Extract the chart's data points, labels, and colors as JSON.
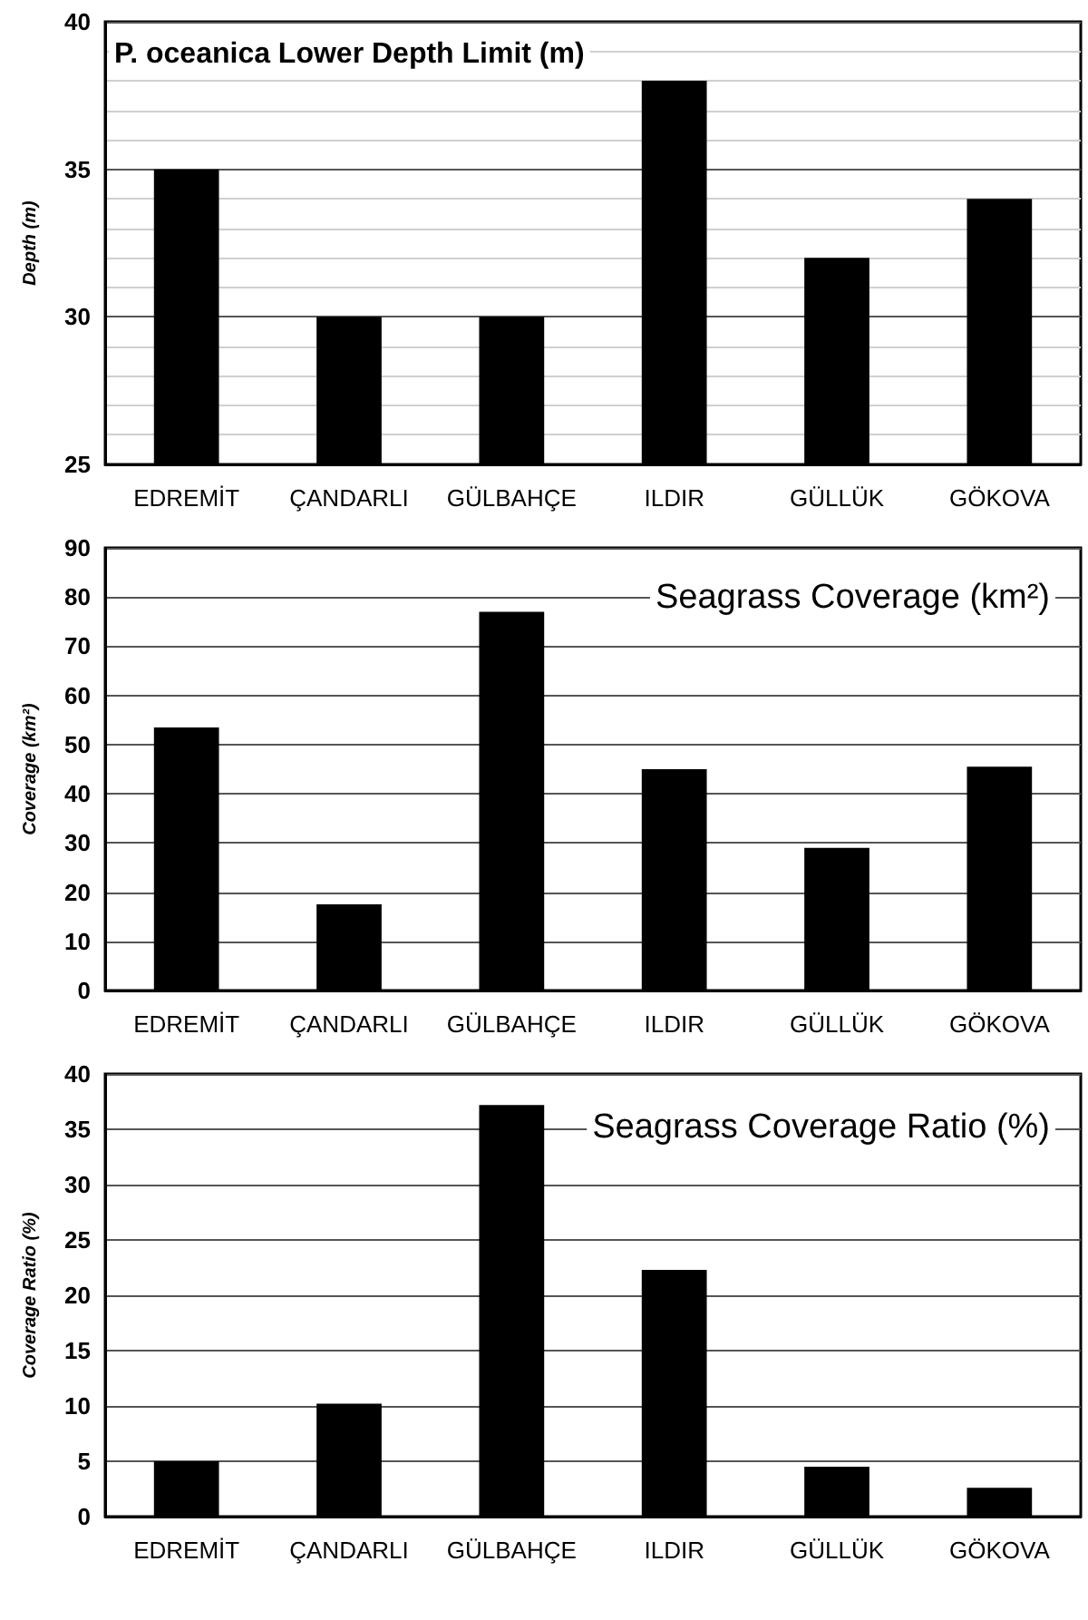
{
  "chart_data": [
    {
      "type": "bar",
      "title": "P. oceanica Lower Depth Limit (m)",
      "ylabel": "Depth (m)",
      "categories": [
        "EDREMİT",
        "ÇANDARLI",
        "GÜLBAHÇE",
        "ILDIR",
        "GÜLLÜK",
        "GÖKOVA"
      ],
      "values": [
        35,
        30,
        30,
        38,
        32,
        34
      ],
      "color": "#000000",
      "ylim": [
        25,
        40
      ],
      "yticks": [
        25,
        {
          "value": 26,
          "label": null
        },
        {
          "value": 27,
          "label": null
        },
        {
          "value": 28,
          "label": null
        },
        {
          "value": 29,
          "label": null
        },
        30,
        {
          "value": 31,
          "label": null
        },
        {
          "value": 32,
          "label": null
        },
        {
          "value": 33,
          "label": null
        },
        {
          "value": 34,
          "label": null
        },
        35,
        {
          "value": 36,
          "label": null
        },
        {
          "value": 37,
          "label": null
        },
        {
          "value": 38,
          "label": null
        },
        {
          "value": 39,
          "label": null
        },
        40
      ],
      "grid": "y"
    },
    {
      "type": "bar",
      "title": "Seagrass Coverage (km²)",
      "ylabel": "Coverage (km²)",
      "categories": [
        "EDREMİT",
        "ÇANDARLI",
        "GÜLBAHÇE",
        "ILDIR",
        "GÜLLÜK",
        "GÖKOVA"
      ],
      "values": [
        53.5,
        17.5,
        77,
        45,
        29,
        45.5
      ],
      "color": "#000000",
      "ylim": [
        0,
        90
      ],
      "yticks": [
        0,
        10,
        20,
        30,
        40,
        50,
        60,
        70,
        80,
        90
      ],
      "grid": "y"
    },
    {
      "type": "bar",
      "title": "Seagrass Coverage Ratio (%)",
      "ylabel": "Coverage Ratio (%)",
      "categories": [
        "EDREMİT",
        "ÇANDARLI",
        "GÜLBAHÇE",
        "ILDIR",
        "GÜLLÜK",
        "GÖKOVA"
      ],
      "values": [
        5,
        10.2,
        37.2,
        22.3,
        4.5,
        2.6
      ],
      "color": "#000000",
      "ylim": [
        0,
        40
      ],
      "yticks": [
        0,
        5,
        10,
        15,
        20,
        25,
        30,
        35,
        40
      ],
      "grid": "y"
    }
  ]
}
